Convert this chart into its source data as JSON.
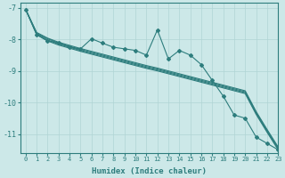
{
  "xlabel": "Humidex (Indice chaleur)",
  "xlim": [
    -0.5,
    23
  ],
  "ylim": [
    -11.6,
    -6.85
  ],
  "yticks": [
    -7,
    -8,
    -9,
    -10,
    -11
  ],
  "xticks": [
    0,
    1,
    2,
    3,
    4,
    5,
    6,
    7,
    8,
    9,
    10,
    11,
    12,
    13,
    14,
    15,
    16,
    17,
    18,
    19,
    20,
    21,
    22,
    23
  ],
  "bg_color": "#cce8e8",
  "line_color": "#2d7d7d",
  "grid_color": "#b0d4d4",
  "jagged_y": [
    -7.05,
    -7.85,
    -8.05,
    -8.1,
    -8.25,
    -8.3,
    -7.98,
    -8.12,
    -8.25,
    -8.3,
    -8.35,
    -8.5,
    -7.7,
    -8.62,
    -8.35,
    -8.5,
    -8.8,
    -9.3,
    -9.8,
    -10.4,
    -10.5,
    -11.1,
    -11.3,
    -11.5
  ],
  "straight_lines": [
    [
      -7.05,
      -7.85,
      -8.05,
      -8.18,
      -8.28,
      -8.38,
      -8.47,
      -8.56,
      -8.65,
      -8.74,
      -8.83,
      -8.92,
      -9.0,
      -9.09,
      -9.18,
      -9.27,
      -9.36,
      -9.45,
      -9.54,
      -9.63,
      -9.72,
      -10.38,
      -10.95,
      -11.5
    ],
    [
      -7.05,
      -7.82,
      -8.02,
      -8.15,
      -8.25,
      -8.35,
      -8.44,
      -8.53,
      -8.62,
      -8.71,
      -8.8,
      -8.89,
      -8.97,
      -9.06,
      -9.15,
      -9.24,
      -9.33,
      -9.42,
      -9.51,
      -9.6,
      -9.69,
      -10.35,
      -10.92,
      -11.47
    ],
    [
      -7.05,
      -7.8,
      -7.98,
      -8.12,
      -8.22,
      -8.32,
      -8.41,
      -8.5,
      -8.59,
      -8.68,
      -8.77,
      -8.86,
      -8.94,
      -9.03,
      -9.12,
      -9.21,
      -9.3,
      -9.39,
      -9.48,
      -9.57,
      -9.66,
      -10.32,
      -10.89,
      -11.44
    ],
    [
      -7.05,
      -7.78,
      -7.96,
      -8.09,
      -8.19,
      -8.29,
      -8.38,
      -8.47,
      -8.56,
      -8.65,
      -8.74,
      -8.83,
      -8.91,
      -9.0,
      -9.09,
      -9.18,
      -9.27,
      -9.36,
      -9.45,
      -9.54,
      -9.63,
      -10.29,
      -10.86,
      -11.41
    ]
  ]
}
